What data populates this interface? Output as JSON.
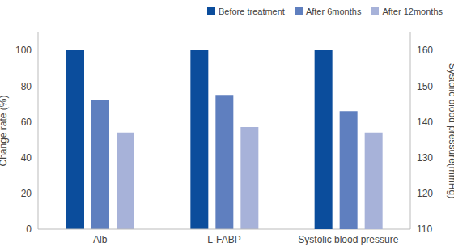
{
  "chart_data": {
    "type": "bar",
    "categories": [
      "Alb",
      "L-FABP",
      "Systolic blood pressure"
    ],
    "y_label": "Change rate (%)",
    "y2_label": "Systolic blood pressure(mmHg)",
    "ylim": [
      0,
      110
    ],
    "yticks": [
      0,
      20,
      40,
      60,
      80,
      100
    ],
    "y2lim": [
      110,
      165
    ],
    "y2ticks": [
      110,
      120,
      130,
      140,
      150,
      160
    ],
    "grid": false,
    "legend": "top right",
    "series": [
      {
        "name": "Before treatment",
        "color": "#0b4d9c",
        "values": [
          100,
          100,
          null
        ]
      },
      {
        "name": "After 6months",
        "color": "#5f7fbf",
        "values": [
          72,
          75,
          null
        ]
      },
      {
        "name": "After 12months",
        "color": "#a7b2d9",
        "values": [
          54,
          57,
          null
        ]
      },
      {
        "name": "Before treatment",
        "color": "#0b4d9c",
        "axis": "y2",
        "values": [
          null,
          null,
          160
        ]
      },
      {
        "name": "After 6months",
        "color": "#5f7fbf",
        "axis": "y2",
        "values": [
          null,
          null,
          143
        ]
      },
      {
        "name": "After 12months",
        "color": "#a7b2d9",
        "axis": "y2",
        "values": [
          null,
          null,
          137
        ]
      }
    ]
  }
}
